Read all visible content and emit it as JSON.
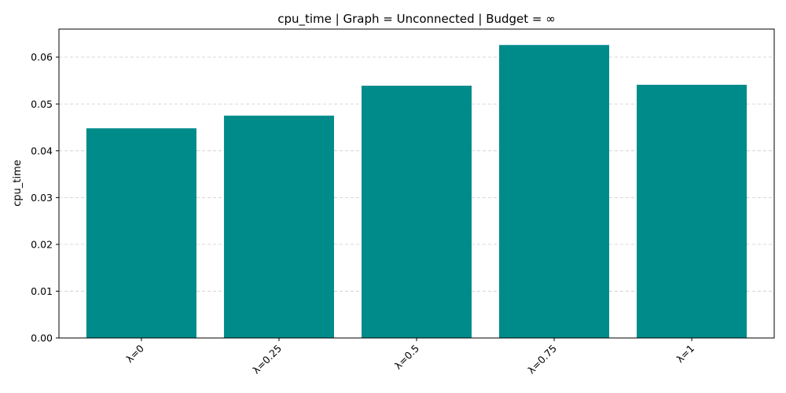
{
  "chart_data": {
    "type": "bar",
    "title": "cpu_time | Graph = Unconnected | Budget = ∞",
    "xlabel": "",
    "ylabel": "cpu_time",
    "categories": [
      "λ=0",
      "λ=0.25",
      "λ=0.5",
      "λ=0.75",
      "λ=1"
    ],
    "values": [
      0.0448,
      0.0475,
      0.0539,
      0.0626,
      0.0541
    ],
    "ylim": [
      0,
      0.066
    ],
    "yticks": [
      "0.00",
      "0.01",
      "0.02",
      "0.03",
      "0.04",
      "0.05",
      "0.06"
    ],
    "grid": "y-dashed",
    "bar_color": "#008b8b",
    "legend": "none"
  }
}
